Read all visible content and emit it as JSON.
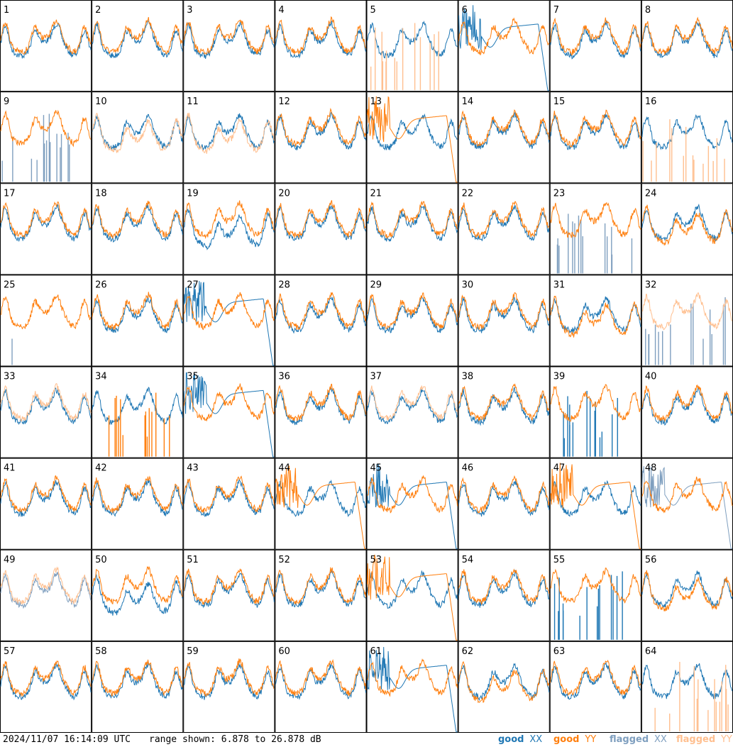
{
  "footer": {
    "timestamp": "2024/11/07 16:14:09 UTC",
    "range_text": "range shown: 6.878 to 26.878 dB"
  },
  "legend": [
    {
      "word1": "good",
      "word2": "XX",
      "color": "#1f77b4"
    },
    {
      "word1": "good",
      "word2": "YY",
      "color": "#ff7f0e"
    },
    {
      "word1": "flagged",
      "word2": "XX",
      "color": "#7f9fbf"
    },
    {
      "word1": "flagged",
      "word2": "YY",
      "color": "#ffbf8f"
    }
  ],
  "chart_data": {
    "type": "line",
    "layout": "small-multiples",
    "rows": 8,
    "cols": 8,
    "ylim": [
      6.878,
      26.878
    ],
    "units": "dB",
    "panel_labels": [
      "1",
      "2",
      "3",
      "4",
      "5",
      "6",
      "7",
      "8",
      "9",
      "10",
      "11",
      "12",
      "13",
      "14",
      "15",
      "16",
      "17",
      "18",
      "19",
      "20",
      "21",
      "22",
      "23",
      "24",
      "25",
      "26",
      "27",
      "28",
      "29",
      "30",
      "31",
      "32",
      "33",
      "34",
      "35",
      "36",
      "37",
      "38",
      "39",
      "40",
      "41",
      "42",
      "43",
      "44",
      "45",
      "46",
      "47",
      "48",
      "49",
      "50",
      "51",
      "52",
      "53",
      "54",
      "55",
      "56",
      "57",
      "58",
      "59",
      "60",
      "61",
      "62",
      "63",
      "64"
    ],
    "panels": {
      "1": {
        "xx": "normal",
        "yy": "normal"
      },
      "5": {
        "xx": "normal",
        "yy": "spikes",
        "yy_flag": true
      },
      "6": {
        "xx": "dropout",
        "yy": "normal"
      },
      "8": {
        "xx": "normal",
        "yy": "normal"
      },
      "9": {
        "xx": "spikes",
        "xx_flag": true,
        "yy": "normal"
      },
      "10": {
        "xx": "normal",
        "yy": "low",
        "yy_flag": true
      },
      "11": {
        "xx": "normal",
        "yy": "low",
        "yy_flag": true
      },
      "13": {
        "xx": "normal",
        "yy": "dropout"
      },
      "16": {
        "xx": "normal",
        "yy": "spikes",
        "yy_flag": true
      },
      "19": {
        "xx": "low",
        "yy": "normal"
      },
      "23": {
        "xx": "spikes",
        "xx_flag": true,
        "yy": "normal"
      },
      "24": {
        "xx": "normal",
        "yy": "low"
      },
      "25": {
        "xx": "singlespike",
        "xx_flag": true,
        "yy": "normal"
      },
      "27": {
        "xx": "dropout",
        "yy": "normal"
      },
      "31": {
        "xx": "normal",
        "yy": "low"
      },
      "32": {
        "xx": "spikes",
        "xx_flag": true,
        "yy": "normal",
        "yy_flag": true
      },
      "33": {
        "xx": "normal",
        "yy": "normal",
        "yy_flag": true
      },
      "34": {
        "xx": "normal",
        "yy": "spikes"
      },
      "35": {
        "xx": "dropout",
        "yy": "normal"
      },
      "37": {
        "xx": "normal",
        "yy": "normal",
        "yy_flag": true
      },
      "39": {
        "xx": "spikes",
        "yy": "normal"
      },
      "44": {
        "xx": "normal",
        "yy": "dropout"
      },
      "45": {
        "xx": "dropout",
        "yy": "normal"
      },
      "47": {
        "xx": "normal",
        "yy": "dropout"
      },
      "48": {
        "xx": "dropout",
        "xx_flag": true,
        "yy": "normal"
      },
      "49": {
        "xx": "normal",
        "xx_flag": true,
        "yy": "normal",
        "yy_flag": true
      },
      "50": {
        "xx": "low",
        "yy": "normal"
      },
      "53": {
        "xx": "normal",
        "yy": "dropout"
      },
      "55": {
        "xx": "spikes",
        "yy": "normal"
      },
      "56": {
        "xx": "normal",
        "yy": "low"
      },
      "61": {
        "xx": "dropout",
        "yy": "normal"
      },
      "62": {
        "xx": "normal",
        "yy": "low"
      },
      "64": {
        "xx": "normal",
        "yy": "spikes",
        "yy_flag": true
      }
    }
  }
}
